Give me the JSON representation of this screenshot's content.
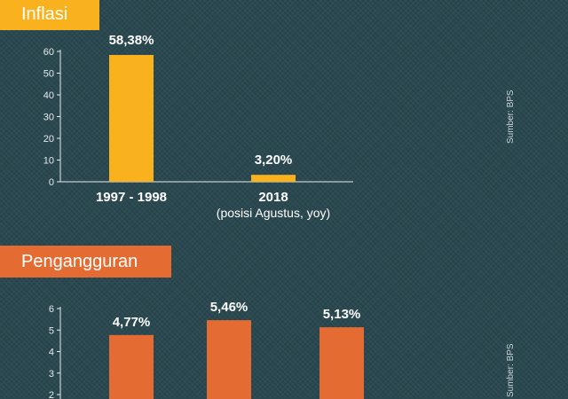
{
  "chart_data": [
    {
      "type": "bar",
      "title": "Inflasi",
      "categories": [
        "1997 - 1998",
        "2018"
      ],
      "category_sublabels": [
        "",
        "(posisi Agustus, yoy)"
      ],
      "values": [
        58.38,
        3.2
      ],
      "value_labels": [
        "58,38%",
        "3,20%"
      ],
      "yticks": [
        "0",
        "10",
        "20",
        "30",
        "40",
        "50",
        "60"
      ],
      "ylim": [
        0,
        60
      ],
      "source": "Sumber: BPS",
      "color": "#f9b21d"
    },
    {
      "type": "bar",
      "title": "Pengangguran",
      "values": [
        4.77,
        5.46,
        5.13
      ],
      "value_labels": [
        "4,77%",
        "5,46%",
        "5,13%"
      ],
      "yticks": [
        "2",
        "3",
        "4",
        "5",
        "6"
      ],
      "ylim": [
        0,
        6
      ],
      "source": "Sumber: BPS",
      "color": "#e46c33"
    }
  ]
}
